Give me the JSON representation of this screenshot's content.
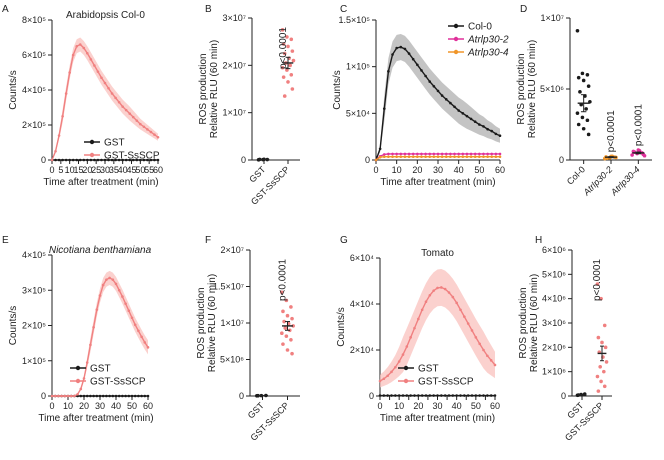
{
  "colors": {
    "black": "#1a1a1a",
    "salmon": "#f08080",
    "salmon_light": "#f7b6b0",
    "magenta": "#e0309a",
    "orange": "#f0962a",
    "grey": "#9a9a9a"
  },
  "chart_data": [
    {
      "panel": "A",
      "type": "line",
      "title": "Arabidopsis Col-0",
      "title_italic": false,
      "xlabel": "Time after treatment (min)",
      "ylabel": "Counts/s",
      "xlim": [
        0,
        60
      ],
      "ylim": [
        0,
        800000
      ],
      "x_ticks": [
        0,
        5,
        10,
        15,
        20,
        25,
        30,
        35,
        40,
        45,
        50,
        55,
        60
      ],
      "x_tick_labels": [
        "0",
        "5",
        "10",
        "15",
        "20",
        "25",
        "30",
        "35",
        "40",
        "45",
        "50",
        "55",
        "60"
      ],
      "y_ticks": [
        0,
        200000,
        400000,
        600000,
        800000
      ],
      "y_tick_labels": [
        "0",
        "2×10⁵",
        "4×10⁵",
        "6×10⁵",
        "8×10⁵"
      ],
      "x": [
        0,
        2,
        4,
        6,
        8,
        10,
        12,
        14,
        16,
        18,
        20,
        22,
        24,
        26,
        28,
        30,
        32,
        34,
        36,
        38,
        40,
        42,
        44,
        46,
        48,
        50,
        52,
        54,
        56,
        58,
        60
      ],
      "legend_position": "lower-right",
      "series": [
        {
          "name": "GST",
          "color": "#1a1a1a",
          "values": [
            0,
            0,
            0,
            0,
            0,
            0,
            0,
            0,
            0,
            0,
            0,
            0,
            0,
            0,
            0,
            0,
            0,
            0,
            0,
            0,
            0,
            0,
            0,
            0,
            0,
            0,
            0,
            0,
            0,
            0,
            0
          ]
        },
        {
          "name": "GST-SsSCP",
          "color": "#f08080",
          "band": 40000,
          "values": [
            0,
            50000,
            140000,
            250000,
            380000,
            500000,
            600000,
            650000,
            660000,
            640000,
            610000,
            575000,
            540000,
            505000,
            470000,
            440000,
            410000,
            380000,
            355000,
            330000,
            305000,
            285000,
            265000,
            245000,
            225000,
            205000,
            190000,
            175000,
            160000,
            145000,
            130000
          ]
        }
      ]
    },
    {
      "panel": "B",
      "type": "scatter",
      "xlabel": "",
      "ylabel": "ROS production",
      "ylabel2": "Relative RLU (60 min)",
      "ylim": [
        0,
        30000000
      ],
      "y_ticks": [
        0,
        10000000,
        20000000,
        30000000
      ],
      "y_tick_labels": [
        "0",
        "1×10⁷",
        "2×10⁷",
        "3×10⁷"
      ],
      "categories": [
        "GST",
        "GST-SsSCP"
      ],
      "annotation": "p<0.0001",
      "groups": [
        {
          "name": "GST",
          "color": "#1a1a1a",
          "mean": 100000,
          "sem": 30000,
          "points": [
            50000,
            80000,
            100000,
            120000,
            150000
          ]
        },
        {
          "name": "GST-SsSCP",
          "color": "#f08080",
          "mean": 20500000,
          "sem": 1200000,
          "points": [
            27500000,
            26000000,
            25500000,
            24500000,
            24000000,
            23000000,
            22500000,
            21500000,
            21000000,
            20500000,
            20000000,
            19500000,
            19000000,
            18000000,
            17500000,
            16500000,
            15000000,
            13500000
          ]
        }
      ]
    },
    {
      "panel": "C",
      "type": "line",
      "xlabel": "Time after treatment (min)",
      "ylabel": "Counts/s",
      "xlim": [
        0,
        60
      ],
      "ylim": [
        0,
        150000
      ],
      "x_ticks": [
        0,
        10,
        20,
        30,
        40,
        50,
        60
      ],
      "x_tick_labels": [
        "0",
        "10",
        "20",
        "30",
        "40",
        "50",
        "60"
      ],
      "y_ticks": [
        0,
        50000,
        100000,
        150000
      ],
      "y_tick_labels": [
        "0",
        "5×10⁴",
        "1×10⁵",
        "1.5×10⁵"
      ],
      "x": [
        0,
        2,
        4,
        6,
        8,
        10,
        12,
        14,
        16,
        18,
        20,
        22,
        24,
        26,
        28,
        30,
        32,
        34,
        36,
        38,
        40,
        42,
        44,
        46,
        48,
        50,
        52,
        54,
        56,
        58,
        60
      ],
      "legend_position": "top-right",
      "series": [
        {
          "name": "Col-0",
          "color": "#1a1a1a",
          "band": 14000,
          "values": [
            0,
            12000,
            55000,
            95000,
            113000,
            120000,
            121000,
            119000,
            114000,
            108000,
            102000,
            96000,
            90000,
            84000,
            79000,
            74000,
            69000,
            65000,
            61000,
            57000,
            53000,
            50000,
            47000,
            44000,
            41000,
            38000,
            36000,
            33000,
            31000,
            28000,
            26000
          ]
        },
        {
          "name": "Atrlp30-2",
          "color": "#e0309a",
          "italic": true,
          "values": [
            0,
            4000,
            6000,
            6500,
            6500,
            6500,
            6500,
            6500,
            6500,
            6500,
            6500,
            6500,
            6500,
            6500,
            6500,
            6500,
            6500,
            6500,
            6500,
            6500,
            6500,
            6500,
            6500,
            6500,
            6500,
            6500,
            6500,
            6500,
            6500,
            6500,
            6500
          ]
        },
        {
          "name": "Atrlp30-4",
          "color": "#f0962a",
          "italic": true,
          "values": [
            0,
            3000,
            3500,
            3500,
            3500,
            3500,
            3500,
            3500,
            3500,
            3500,
            3500,
            3500,
            3500,
            3500,
            3500,
            3500,
            3500,
            3500,
            3500,
            3500,
            3500,
            3500,
            3500,
            3500,
            3500,
            3500,
            3500,
            3500,
            3500,
            3500,
            3500
          ]
        }
      ]
    },
    {
      "panel": "D",
      "type": "scatter",
      "ylabel": "ROS production",
      "ylabel2": "Relative RLU (60 min)",
      "ylim": [
        0,
        10000000
      ],
      "y_ticks": [
        0,
        5000000,
        10000000
      ],
      "y_tick_labels": [
        "0",
        "5×10⁶",
        "1×10⁷"
      ],
      "categories": [
        "Col-0",
        "Atrlp30-2",
        "Atrlp30-4"
      ],
      "annotations": [
        "",
        "p<0.0001",
        "p<0.0001"
      ],
      "groups": [
        {
          "name": "Col-0",
          "color": "#1a1a1a",
          "mean": 4000000,
          "sem": 600000,
          "points": [
            9100000,
            6100000,
            6000000,
            5800000,
            5600000,
            5200000,
            4800000,
            4500000,
            4100000,
            3900000,
            3600000,
            3300000,
            3000000,
            2800000,
            2500000,
            2200000,
            1800000
          ]
        },
        {
          "name": "Atrlp30-2",
          "color": "#f0962a",
          "italic": true,
          "mean": 200000,
          "sem": 40000,
          "points": [
            100000,
            150000,
            200000,
            220000,
            250000,
            180000,
            130000,
            260000
          ]
        },
        {
          "name": "Atrlp30-4",
          "color": "#e0309a",
          "italic": true,
          "mean": 500000,
          "sem": 60000,
          "points": [
            350000,
            450000,
            500000,
            600000,
            700000,
            400000,
            550000,
            650000,
            300000
          ]
        }
      ]
    },
    {
      "panel": "E",
      "type": "line",
      "title": "Nicotiana benthamiana",
      "title_italic": true,
      "xlabel": "Time after treatment (min)",
      "ylabel": "Counts/s",
      "xlim": [
        0,
        60
      ],
      "ylim": [
        0,
        400000
      ],
      "x_ticks": [
        0,
        10,
        20,
        30,
        40,
        50,
        60
      ],
      "x_tick_labels": [
        "0",
        "10",
        "20",
        "30",
        "40",
        "50",
        "60"
      ],
      "y_ticks": [
        0,
        100000,
        200000,
        300000,
        400000
      ],
      "y_tick_labels": [
        "0",
        "1×10⁵",
        "2×10⁵",
        "3×10⁵",
        "4×10⁵"
      ],
      "x": [
        0,
        2,
        4,
        6,
        8,
        10,
        12,
        14,
        16,
        18,
        20,
        22,
        24,
        26,
        28,
        30,
        32,
        34,
        36,
        38,
        40,
        42,
        44,
        46,
        48,
        50,
        52,
        54,
        56,
        58,
        60
      ],
      "legend_position": "bottom-center",
      "series": [
        {
          "name": "GST",
          "color": "#1a1a1a",
          "values": [
            0,
            0,
            0,
            0,
            0,
            0,
            0,
            0,
            0,
            0,
            0,
            0,
            0,
            0,
            0,
            0,
            0,
            0,
            0,
            0,
            0,
            0,
            0,
            0,
            0,
            0,
            0,
            0,
            0,
            0,
            0
          ]
        },
        {
          "name": "GST-SsSCP",
          "color": "#f08080",
          "band": 20000,
          "values": [
            0,
            0,
            0,
            0,
            0,
            0,
            0,
            0,
            5000,
            20000,
            50000,
            95000,
            145000,
            195000,
            245000,
            285000,
            315000,
            330000,
            335000,
            330000,
            318000,
            300000,
            282000,
            262000,
            242000,
            222000,
            202000,
            185000,
            168000,
            152000,
            138000
          ]
        }
      ]
    },
    {
      "panel": "F",
      "type": "scatter",
      "ylabel": "ROS production",
      "ylabel2": "Relative RLU (60 min)",
      "ylim": [
        0,
        20000000
      ],
      "y_ticks": [
        0,
        5000000,
        10000000,
        15000000,
        20000000
      ],
      "y_tick_labels": [
        "0",
        "5×10⁶",
        "1×10⁷",
        "1.5×10⁷",
        "2×10⁷"
      ],
      "categories": [
        "GST",
        "GST-SsSCP"
      ],
      "annotation": "p<0.0001",
      "groups": [
        {
          "name": "GST",
          "color": "#1a1a1a",
          "mean": 50000,
          "sem": 20000,
          "points": [
            30000,
            50000,
            70000,
            40000
          ]
        },
        {
          "name": "GST-SsSCP",
          "color": "#f08080",
          "mean": 9600000,
          "sem": 600000,
          "points": [
            14200000,
            13100000,
            12200000,
            11600000,
            11000000,
            10600000,
            10200000,
            9900000,
            9600000,
            9300000,
            9000000,
            8600000,
            8200000,
            7700000,
            7100000,
            6300000,
            5800000
          ]
        }
      ]
    },
    {
      "panel": "G",
      "type": "line",
      "title": "Tomato",
      "title_italic": false,
      "xlabel": "Time after treatment (min)",
      "ylabel": "Counts/s",
      "xlim": [
        0,
        60
      ],
      "ylim": [
        0,
        60000
      ],
      "x_ticks": [
        0,
        5,
        10,
        15,
        20,
        25,
        30,
        35,
        40,
        45,
        50,
        55,
        60
      ],
      "x_tick_labels": [
        "0",
        "10",
        "20",
        "30",
        "40",
        "50",
        "60"
      ],
      "x_tick_label_values": [
        0,
        10,
        20,
        30,
        40,
        50,
        60
      ],
      "y_ticks": [
        0,
        20000,
        40000,
        60000
      ],
      "y_tick_labels": [
        "0",
        "2×10⁴",
        "4×10⁴",
        "6×10⁴"
      ],
      "x": [
        0,
        2,
        4,
        6,
        8,
        10,
        12,
        14,
        16,
        18,
        20,
        22,
        24,
        26,
        28,
        30,
        32,
        34,
        36,
        38,
        40,
        42,
        44,
        46,
        48,
        50,
        52,
        54,
        56,
        58,
        60
      ],
      "legend_position": "bottom-center",
      "series": [
        {
          "name": "GST",
          "color": "#1a1a1a",
          "values": [
            200,
            200,
            200,
            200,
            200,
            200,
            200,
            200,
            200,
            200,
            200,
            200,
            200,
            200,
            200,
            200,
            200,
            200,
            200,
            200,
            200,
            200,
            200,
            200,
            200,
            200,
            200,
            200,
            200,
            200,
            200
          ]
        },
        {
          "name": "GST-SsSCP",
          "color": "#f08080",
          "band": 8000,
          "values": [
            6500,
            7500,
            8800,
            10500,
            12500,
            15000,
            18000,
            21500,
            25500,
            29500,
            33500,
            37500,
            41000,
            43800,
            45800,
            47000,
            47200,
            46500,
            45000,
            43000,
            40500,
            37500,
            34500,
            31500,
            28500,
            25500,
            22700,
            20000,
            17500,
            15500,
            13500
          ]
        }
      ]
    },
    {
      "panel": "H",
      "type": "scatter",
      "ylabel": "ROS production",
      "ylabel2": "Relative RLU (60 min)",
      "ylim": [
        0,
        6000000
      ],
      "y_ticks": [
        0,
        1000000,
        2000000,
        3000000,
        4000000,
        5000000,
        6000000
      ],
      "y_tick_labels": [
        "0",
        "1×10⁶",
        "2×10⁶",
        "3×10⁶",
        "4×10⁶",
        "5×10⁶",
        "6×10⁶"
      ],
      "categories": [
        "GST",
        "GST-SsSCP"
      ],
      "annotation": "p<0.0001",
      "groups": [
        {
          "name": "GST",
          "color": "#1a1a1a",
          "mean": 50000,
          "sem": 20000,
          "points": [
            30000,
            60000,
            80000,
            40000
          ]
        },
        {
          "name": "GST-SsSCP",
          "color": "#f08080",
          "mean": 1750000,
          "sem": 300000,
          "points": [
            4600000,
            4000000,
            2900000,
            2400000,
            2200000,
            2000000,
            1800000,
            1600000,
            1400000,
            1200000,
            1000000,
            800000,
            600000,
            400000,
            200000
          ]
        }
      ]
    }
  ]
}
